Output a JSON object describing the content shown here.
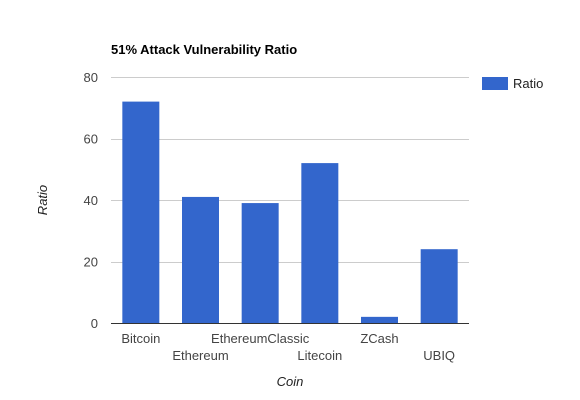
{
  "chart_data": {
    "type": "bar",
    "title": "51% Attack Vulnerability Ratio",
    "xlabel": "Coin",
    "ylabel": "Ratio",
    "categories": [
      "Bitcoin",
      "Ethereum",
      "EthereumClassic",
      "Litecoin",
      "ZCash",
      "UBIQ"
    ],
    "series": [
      {
        "name": "Ratio",
        "color": "#3366cc",
        "values": [
          72,
          41,
          39,
          52,
          2,
          24
        ]
      }
    ],
    "ylim": [
      0,
      80
    ],
    "yticks": [
      0,
      20,
      40,
      60,
      80
    ],
    "grid": true,
    "legend": "right"
  }
}
